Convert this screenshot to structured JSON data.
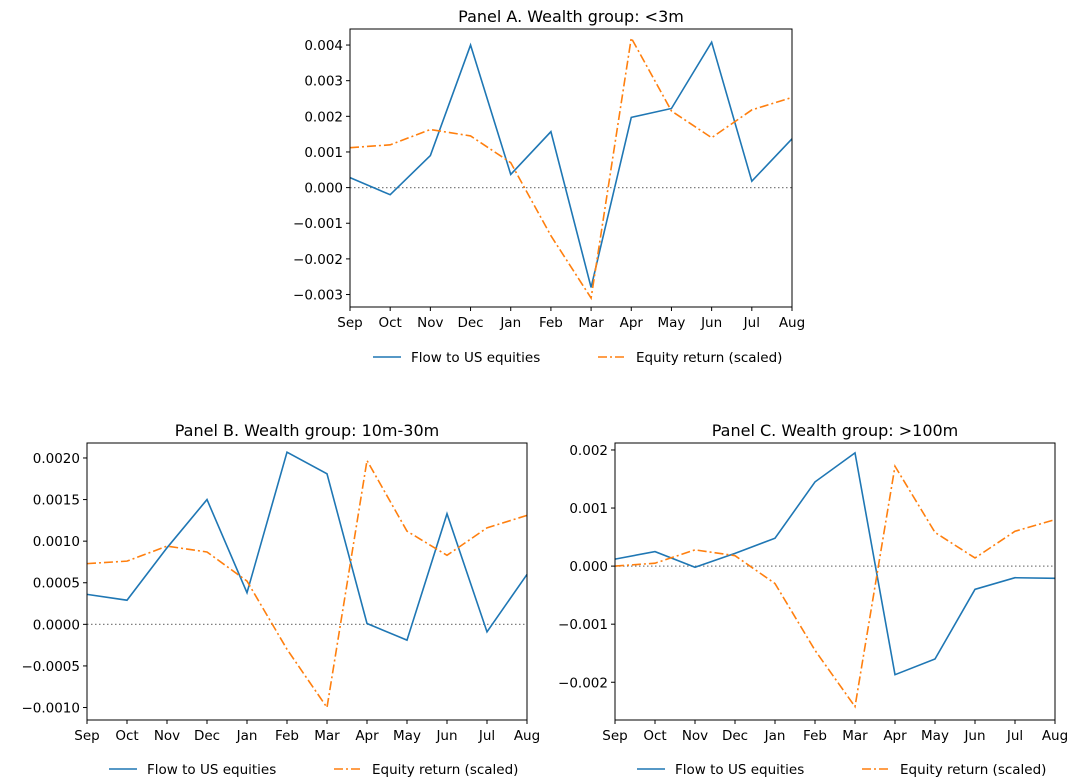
{
  "chart_data": [
    {
      "type": "line",
      "title": "Panel A. Wealth group: <3m",
      "xlabel": "",
      "ylabel": "",
      "categories": [
        "Sep",
        "Oct",
        "Nov",
        "Dec",
        "Jan",
        "Feb",
        "Mar",
        "Apr",
        "May",
        "Jun",
        "Jul",
        "Aug"
      ],
      "ylim": [
        -0.00335,
        0.00445
      ],
      "yticks": [
        -0.003,
        -0.002,
        -0.001,
        0.0,
        0.001,
        0.002,
        0.003,
        0.004
      ],
      "ytick_labels": [
        "−0.003",
        "−0.002",
        "−0.001",
        "0.000",
        "0.001",
        "0.002",
        "0.003",
        "0.004"
      ],
      "reference_line_y": 0,
      "series": [
        {
          "name": "Flow to US equities",
          "color": "#1f77b4",
          "style": "solid",
          "values": [
            0.00028,
            -0.0002,
            0.0009,
            0.004,
            0.00037,
            0.00157,
            -0.0028,
            0.00197,
            0.00222,
            0.00408,
            0.00018,
            0.00137
          ]
        },
        {
          "name": "Equity return (scaled)",
          "color": "#ff7f0e",
          "style": "dashdot",
          "values": [
            0.00112,
            0.0012,
            0.00163,
            0.00145,
            0.0007,
            -0.00135,
            -0.0031,
            0.0042,
            0.00215,
            0.0014,
            0.00218,
            0.00253
          ]
        }
      ],
      "legend": "bottom-center"
    },
    {
      "type": "line",
      "title": "Panel B. Wealth group: 10m-30m",
      "xlabel": "",
      "ylabel": "",
      "categories": [
        "Sep",
        "Oct",
        "Nov",
        "Dec",
        "Jan",
        "Feb",
        "Mar",
        "Apr",
        "May",
        "Jun",
        "Jul",
        "Aug"
      ],
      "ylim": [
        -0.00115,
        0.00218
      ],
      "yticks": [
        -0.001,
        -0.0005,
        0.0,
        0.0005,
        0.001,
        0.0015,
        0.002
      ],
      "ytick_labels": [
        "−0.0010",
        "−0.0005",
        "0.0000",
        "0.0005",
        "0.0010",
        "0.0015",
        "0.0020"
      ],
      "reference_line_y": 0,
      "series": [
        {
          "name": "Flow to US equities",
          "color": "#1f77b4",
          "style": "solid",
          "values": [
            0.00036,
            0.00029,
            0.00092,
            0.0015,
            0.00038,
            0.00207,
            0.00181,
            1e-05,
            -0.00019,
            0.00133,
            -9e-05,
            0.0006
          ]
        },
        {
          "name": "Equity return (scaled)",
          "color": "#ff7f0e",
          "style": "dashdot",
          "values": [
            0.00073,
            0.00076,
            0.00094,
            0.00087,
            0.00052,
            -0.0003,
            -0.001,
            0.00197,
            0.00112,
            0.00083,
            0.00116,
            0.00131
          ]
        }
      ],
      "legend": "bottom-center"
    },
    {
      "type": "line",
      "title": "Panel C. Wealth group: >100m",
      "xlabel": "",
      "ylabel": "",
      "categories": [
        "Sep",
        "Oct",
        "Nov",
        "Dec",
        "Jan",
        "Feb",
        "Mar",
        "Apr",
        "May",
        "Jun",
        "Jul",
        "Aug"
      ],
      "ylim": [
        -0.00265,
        0.00212
      ],
      "yticks": [
        -0.002,
        -0.001,
        0.0,
        0.001,
        0.002
      ],
      "ytick_labels": [
        "−0.002",
        "−0.001",
        "0.000",
        "0.001",
        "0.002"
      ],
      "reference_line_y": 0,
      "series": [
        {
          "name": "Flow to US equities",
          "color": "#1f77b4",
          "style": "solid",
          "values": [
            0.00012,
            0.00025,
            -2e-05,
            0.00022,
            0.00048,
            0.00145,
            0.00195,
            -0.00187,
            -0.0016,
            -0.0004,
            -0.0002,
            -0.00021
          ]
        },
        {
          "name": "Equity return (scaled)",
          "color": "#ff7f0e",
          "style": "dashdot",
          "values": [
            0.0,
            5e-05,
            0.00028,
            0.00018,
            -0.0003,
            -0.00145,
            -0.00242,
            0.00172,
            0.00058,
            0.00014,
            0.0006,
            0.0008
          ]
        }
      ],
      "legend": "bottom-center"
    }
  ]
}
